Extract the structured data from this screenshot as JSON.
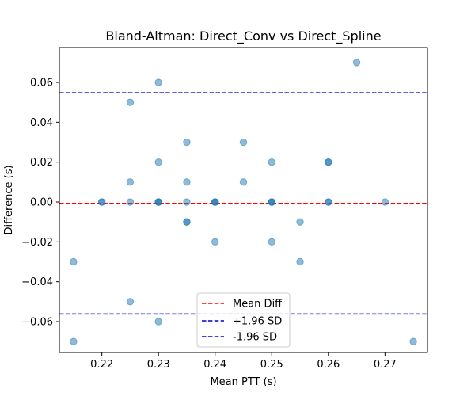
{
  "chart_data": {
    "type": "scatter",
    "title": "Bland-Altman: Direct_Conv vs Direct_Spline",
    "xlabel": "Mean PTT (s)",
    "ylabel": "Difference (s)",
    "xlim": [
      0.2125,
      0.2775
    ],
    "ylim": [
      -0.0755,
      0.0775
    ],
    "xticks": [
      0.22,
      0.23,
      0.24,
      0.25,
      0.26,
      0.27
    ],
    "xtick_labels": [
      "0.22",
      "0.23",
      "0.24",
      "0.25",
      "0.26",
      "0.27"
    ],
    "yticks": [
      -0.06,
      -0.04,
      -0.02,
      0.0,
      0.02,
      0.04,
      0.06
    ],
    "ytick_labels": [
      "−0.06",
      "−0.04",
      "−0.02",
      "0.00",
      "0.02",
      "0.04",
      "0.06"
    ],
    "grid": false,
    "legend_position": "lower-center",
    "points": {
      "color": "#1f77b4",
      "alpha": 0.5,
      "x": [
        0.215,
        0.215,
        0.22,
        0.22,
        0.225,
        0.225,
        0.225,
        0.225,
        0.23,
        0.23,
        0.23,
        0.23,
        0.23,
        0.23,
        0.235,
        0.235,
        0.235,
        0.235,
        0.235,
        0.24,
        0.24,
        0.24,
        0.24,
        0.245,
        0.245,
        0.25,
        0.25,
        0.25,
        0.25,
        0.25,
        0.255,
        0.255,
        0.26,
        0.26,
        0.26,
        0.26,
        0.265,
        0.27,
        0.275
      ],
      "y": [
        -0.03,
        -0.07,
        0.0,
        0.0,
        0.05,
        0.01,
        -0.05,
        0.0,
        0.06,
        0.02,
        0.0,
        0.0,
        -0.06,
        0.0,
        0.03,
        0.01,
        -0.01,
        -0.01,
        0.0,
        0.0,
        0.0,
        0.0,
        -0.02,
        0.03,
        0.01,
        0.02,
        0.0,
        0.0,
        -0.02,
        0.0,
        -0.01,
        -0.03,
        0.02,
        0.02,
        0.0,
        0.0,
        0.07,
        0.0,
        -0.07
      ]
    },
    "reference_lines": [
      {
        "name": "Mean Diff",
        "y": -0.0007,
        "color": "#ff0000"
      },
      {
        "name": "+1.96 SD",
        "y": 0.0548,
        "color": "#0000cc"
      },
      {
        "name": "-1.96 SD",
        "y": -0.0562,
        "color": "#0000cc"
      }
    ]
  }
}
